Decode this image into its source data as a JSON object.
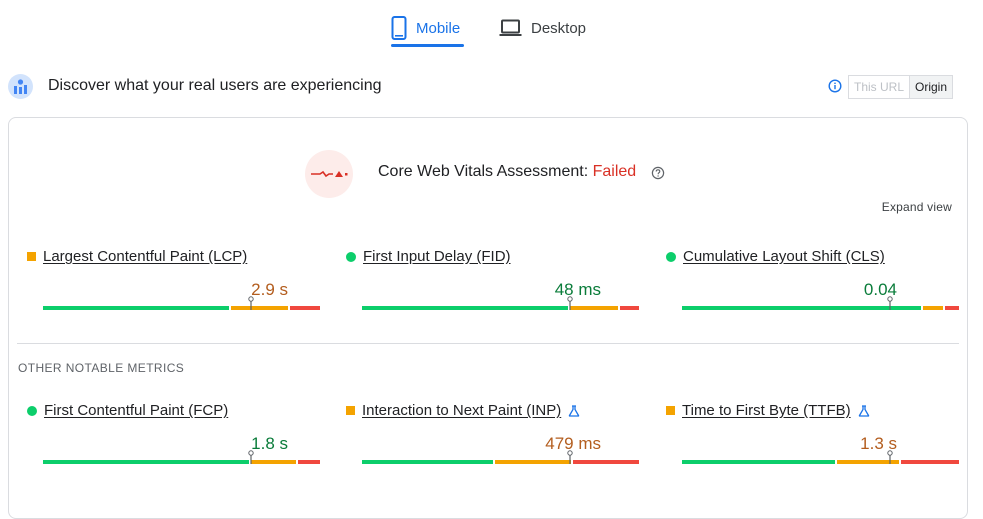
{
  "tabs": [
    {
      "label": "Mobile",
      "active": true,
      "icon": "smartphone-icon"
    },
    {
      "label": "Desktop",
      "active": false,
      "icon": "laptop-icon"
    }
  ],
  "header": {
    "title": "Discover what your real users are experiencing",
    "toggle": {
      "this_url": "This URL",
      "origin": "Origin",
      "selected": "Origin"
    }
  },
  "assessment": {
    "label": "Core Web Vitals Assessment: ",
    "status": "Failed",
    "expand_label": "Expand view"
  },
  "other_label": "OTHER NOTABLE METRICS",
  "colors": {
    "good": "#0cce6b",
    "needs_improvement": "#f4a300",
    "poor": "#f0483e",
    "accent": "#1a73e8",
    "failed": "#d93025"
  },
  "core_metrics": [
    {
      "name": "Largest Contentful Paint (LCP)",
      "value": "2.9 s",
      "rating": "needs-improvement",
      "distribution": [
        0.68,
        0.21,
        0.11
      ],
      "marker": 0.75
    },
    {
      "name": "First Input Delay (FID)",
      "value": "48 ms",
      "rating": "good",
      "distribution": [
        0.75,
        0.18,
        0.07
      ],
      "marker": 0.75
    },
    {
      "name": "Cumulative Layout Shift (CLS)",
      "value": "0.04",
      "rating": "good",
      "distribution": [
        0.87,
        0.08,
        0.05
      ],
      "marker": 0.75
    }
  ],
  "other_metrics": [
    {
      "name": "First Contentful Paint (FCP)",
      "value": "1.8 s",
      "rating": "good",
      "distribution": [
        0.75,
        0.17,
        0.08
      ],
      "marker": 0.75
    },
    {
      "name": "Interaction to Next Paint (INP)",
      "value": "479 ms",
      "rating": "needs-improvement",
      "distribution": [
        0.48,
        0.28,
        0.24
      ],
      "marker": 0.75,
      "experimental": true
    },
    {
      "name": "Time to First Byte (TTFB)",
      "value": "1.3 s",
      "rating": "needs-improvement",
      "distribution": [
        0.56,
        0.23,
        0.21
      ],
      "marker": 0.75,
      "experimental": true
    }
  ]
}
